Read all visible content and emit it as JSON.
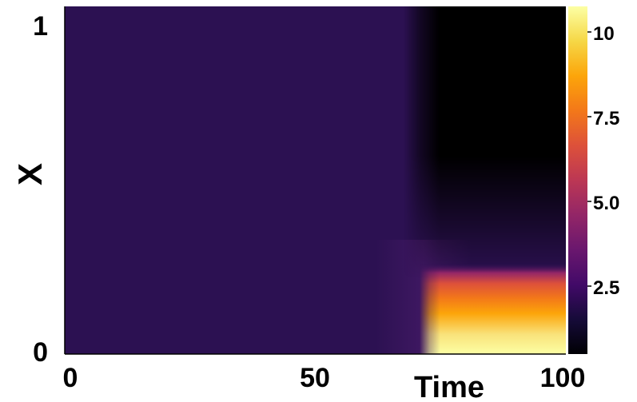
{
  "chart_data": {
    "type": "heatmap",
    "title": "",
    "xlabel": "Time",
    "ylabel": "X",
    "xlim": [
      0,
      100
    ],
    "ylim": [
      0,
      1
    ],
    "x_ticks": [
      "0",
      "50",
      "100"
    ],
    "y_ticks": [
      "0",
      "1"
    ],
    "colorbar": {
      "range": [
        0.5,
        10.6
      ],
      "colormap": "inferno",
      "ticks": [
        "2.5",
        "5.0",
        "7.5",
        "10"
      ]
    },
    "grid": false,
    "description_values": {
      "baseline_value": 2.3,
      "time_of_change": 75,
      "high_region": {
        "x_range": [
          78,
          100
        ],
        "y_range": [
          0,
          0.1
        ],
        "value": 10.6
      },
      "low_region": {
        "x_range": [
          75,
          100
        ],
        "y_range": [
          0.3,
          1
        ],
        "value": 0.5
      }
    }
  }
}
